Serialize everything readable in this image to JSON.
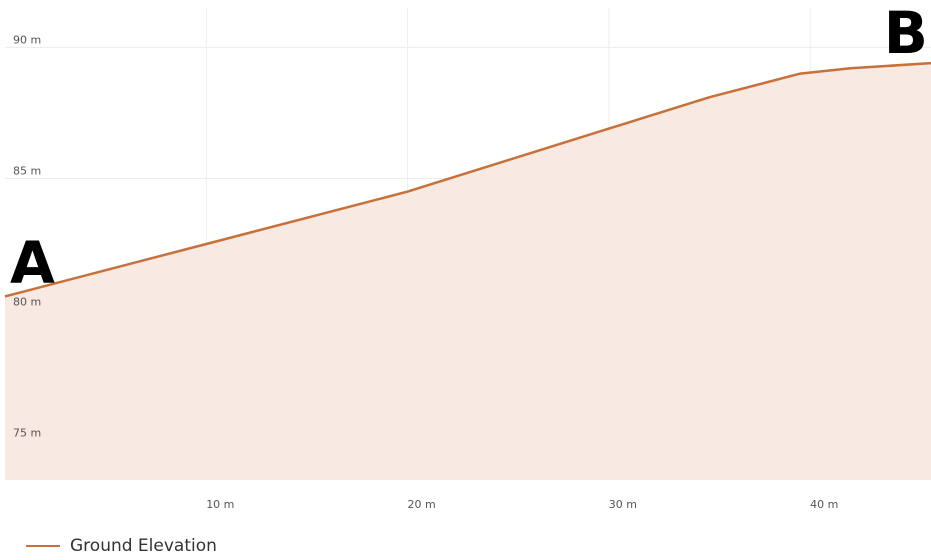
{
  "chart_data": {
    "type": "area",
    "x_unit": "m",
    "y_unit": "m",
    "xlim": [
      0,
      46
    ],
    "ylim": [
      73.5,
      91.5
    ],
    "x_ticks": [
      {
        "value": 10,
        "label": "10 m"
      },
      {
        "value": 20,
        "label": "20 m"
      },
      {
        "value": 30,
        "label": "30 m"
      },
      {
        "value": 40,
        "label": "40 m"
      }
    ],
    "y_ticks": [
      {
        "value": 75,
        "label": "75 m"
      },
      {
        "value": 80,
        "label": "80 m"
      },
      {
        "value": 85,
        "label": "85 m"
      },
      {
        "value": 90,
        "label": "90 m"
      }
    ],
    "grid": true,
    "legend_position": "bottom-left",
    "series": [
      {
        "name": "Ground Elevation",
        "color": "#c8703a",
        "fill": "#f8e9e2",
        "x": [
          0,
          10,
          20,
          25,
          30,
          35,
          39.5,
          42,
          46
        ],
        "y": [
          80.5,
          82.5,
          84.5,
          85.7,
          86.9,
          88.1,
          89.0,
          89.2,
          89.4
        ]
      }
    ],
    "annotations": [
      {
        "text": "A",
        "x": 0,
        "y": 80.5,
        "position": "left"
      },
      {
        "text": "B",
        "x": 46,
        "y": 89.4,
        "position": "right"
      }
    ]
  }
}
